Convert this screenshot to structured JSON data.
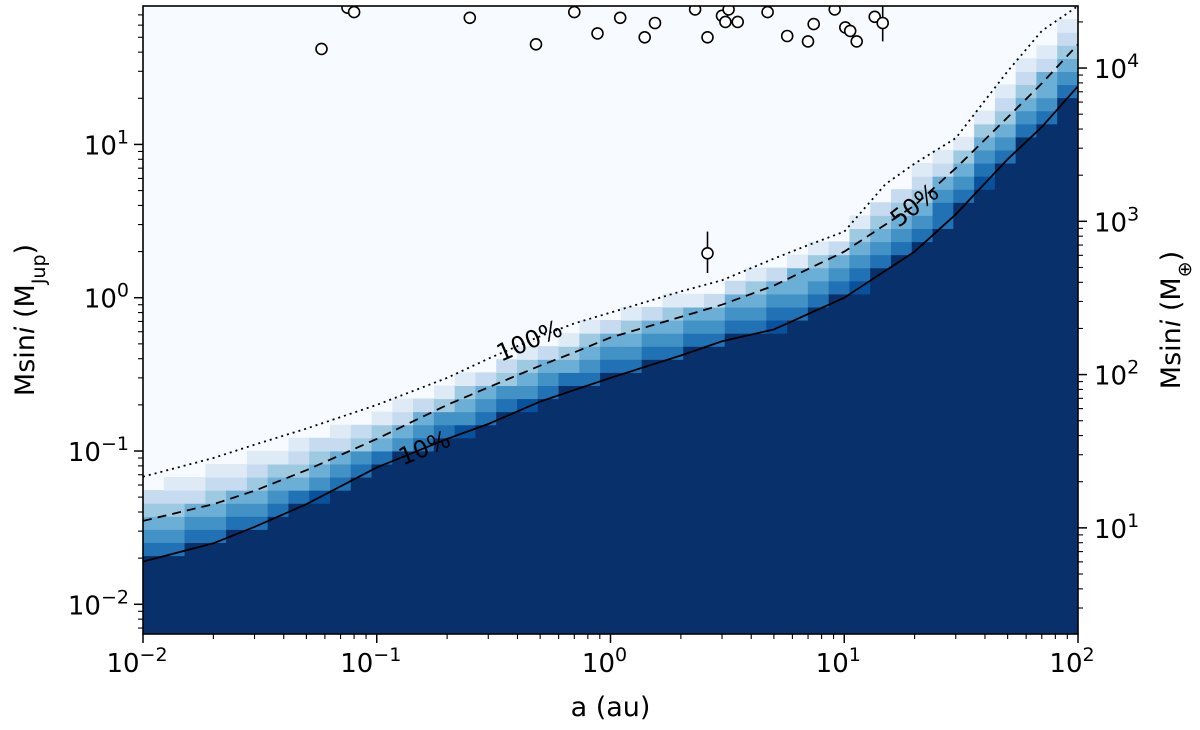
{
  "chart_data": {
    "type": "heatmap",
    "x_scale": "log",
    "y_scale": "log",
    "xlim": [
      0.01,
      100
    ],
    "ylim": [
      0.0064,
      80
    ],
    "y2lim_earth_masses": [
      2.03,
      25400
    ],
    "x_ticks": [
      {
        "base": "10",
        "exp": "−2",
        "value": 0.01
      },
      {
        "base": "10",
        "exp": "−1",
        "value": 0.1
      },
      {
        "base": "10",
        "exp": "0",
        "value": 1
      },
      {
        "base": "10",
        "exp": "1",
        "value": 10
      },
      {
        "base": "10",
        "exp": "2",
        "value": 100
      }
    ],
    "y_ticks": [
      {
        "base": "10",
        "exp": "−2",
        "value": 0.01
      },
      {
        "base": "10",
        "exp": "−1",
        "value": 0.1
      },
      {
        "base": "10",
        "exp": "0",
        "value": 1
      },
      {
        "base": "10",
        "exp": "1",
        "value": 10
      }
    ],
    "y2_ticks": [
      {
        "base": "10",
        "exp": "1",
        "value": 10
      },
      {
        "base": "10",
        "exp": "2",
        "value": 100
      },
      {
        "base": "10",
        "exp": "3",
        "value": 1000
      },
      {
        "base": "10",
        "exp": "4",
        "value": 10000
      }
    ],
    "xlabel": "a (au)",
    "ylabel": {
      "prefix": "Msin",
      "italic": "i",
      "mid": " (M",
      "sub": "Jup",
      "suffix": ")"
    },
    "y2label": {
      "prefix": "Msin",
      "italic": "i",
      "mid": " (M",
      "sub": "⊕",
      "suffix": ")"
    },
    "colormap": [
      "#08306b",
      "#08519c",
      "#2171b5",
      "#4292c6",
      "#6baed6",
      "#9ecae1",
      "#c6dbef",
      "#deebf7",
      "#f7fbff"
    ],
    "contours": [
      {
        "label": "10%",
        "style": "solid",
        "label_at_x": 0.16,
        "points": [
          [
            0.01,
            0.019
          ],
          [
            0.02,
            0.025
          ],
          [
            0.03,
            0.032
          ],
          [
            0.05,
            0.045
          ],
          [
            0.1,
            0.078
          ],
          [
            0.2,
            0.12
          ],
          [
            0.3,
            0.15
          ],
          [
            0.5,
            0.21
          ],
          [
            0.7,
            0.25
          ],
          [
            1,
            0.3
          ],
          [
            2,
            0.42
          ],
          [
            3,
            0.52
          ],
          [
            5,
            0.62
          ],
          [
            10,
            1.0
          ],
          [
            20,
            2.0
          ],
          [
            30,
            3.5
          ],
          [
            50,
            8
          ],
          [
            70,
            13
          ],
          [
            100,
            24
          ]
        ]
      },
      {
        "label": "50%",
        "style": "dashed",
        "label_at_x": 20,
        "points": [
          [
            0.01,
            0.035
          ],
          [
            0.02,
            0.045
          ],
          [
            0.03,
            0.055
          ],
          [
            0.05,
            0.075
          ],
          [
            0.1,
            0.12
          ],
          [
            0.2,
            0.2
          ],
          [
            0.3,
            0.26
          ],
          [
            0.5,
            0.36
          ],
          [
            0.7,
            0.44
          ],
          [
            1,
            0.55
          ],
          [
            2,
            0.75
          ],
          [
            3,
            0.9
          ],
          [
            5,
            1.2
          ],
          [
            10,
            2.0
          ],
          [
            20,
            4.0
          ],
          [
            30,
            7
          ],
          [
            50,
            15
          ],
          [
            70,
            25
          ],
          [
            100,
            45
          ]
        ]
      },
      {
        "label": "100%",
        "style": "dotted",
        "label_at_x": 0.45,
        "points": [
          [
            0.01,
            0.068
          ],
          [
            0.02,
            0.09
          ],
          [
            0.03,
            0.11
          ],
          [
            0.05,
            0.14
          ],
          [
            0.1,
            0.2
          ],
          [
            0.2,
            0.3
          ],
          [
            0.3,
            0.4
          ],
          [
            0.5,
            0.56
          ],
          [
            0.7,
            0.68
          ],
          [
            1,
            0.8
          ],
          [
            2,
            1.1
          ],
          [
            3,
            1.3
          ],
          [
            5,
            1.8
          ],
          [
            7,
            2.2
          ],
          [
            10,
            2.7
          ],
          [
            15,
            5.5
          ],
          [
            20,
            7.5
          ],
          [
            30,
            11
          ],
          [
            50,
            30
          ],
          [
            70,
            55
          ],
          [
            100,
            80
          ]
        ]
      }
    ],
    "points": [
      {
        "a": 0.058,
        "m": 42
      },
      {
        "a": 0.075,
        "m": 78
      },
      {
        "a": 0.08,
        "m": 73
      },
      {
        "a": 0.25,
        "m": 67
      },
      {
        "a": 0.48,
        "m": 45
      },
      {
        "a": 0.7,
        "m": 73
      },
      {
        "a": 0.88,
        "m": 53
      },
      {
        "a": 1.1,
        "m": 67
      },
      {
        "a": 1.4,
        "m": 50
      },
      {
        "a": 1.55,
        "m": 62
      },
      {
        "a": 2.3,
        "m": 76
      },
      {
        "a": 2.6,
        "m": 50
      },
      {
        "a": 2.6,
        "m": 1.95,
        "m_err": [
          1.45,
          2.7
        ]
      },
      {
        "a": 3.0,
        "m": 69
      },
      {
        "a": 3.1,
        "m": 63
      },
      {
        "a": 3.2,
        "m": 76
      },
      {
        "a": 3.5,
        "m": 63
      },
      {
        "a": 4.7,
        "m": 73
      },
      {
        "a": 5.7,
        "m": 51
      },
      {
        "a": 7.0,
        "m": 47
      },
      {
        "a": 7.4,
        "m": 61
      },
      {
        "a": 9.1,
        "m": 76
      },
      {
        "a": 10.1,
        "m": 58
      },
      {
        "a": 10.6,
        "m": 55
      },
      {
        "a": 11.3,
        "m": 47
      },
      {
        "a": 13.5,
        "m": 68
      },
      {
        "a": 14.6,
        "m": 62,
        "m_err": [
          47,
          80
        ]
      }
    ]
  }
}
